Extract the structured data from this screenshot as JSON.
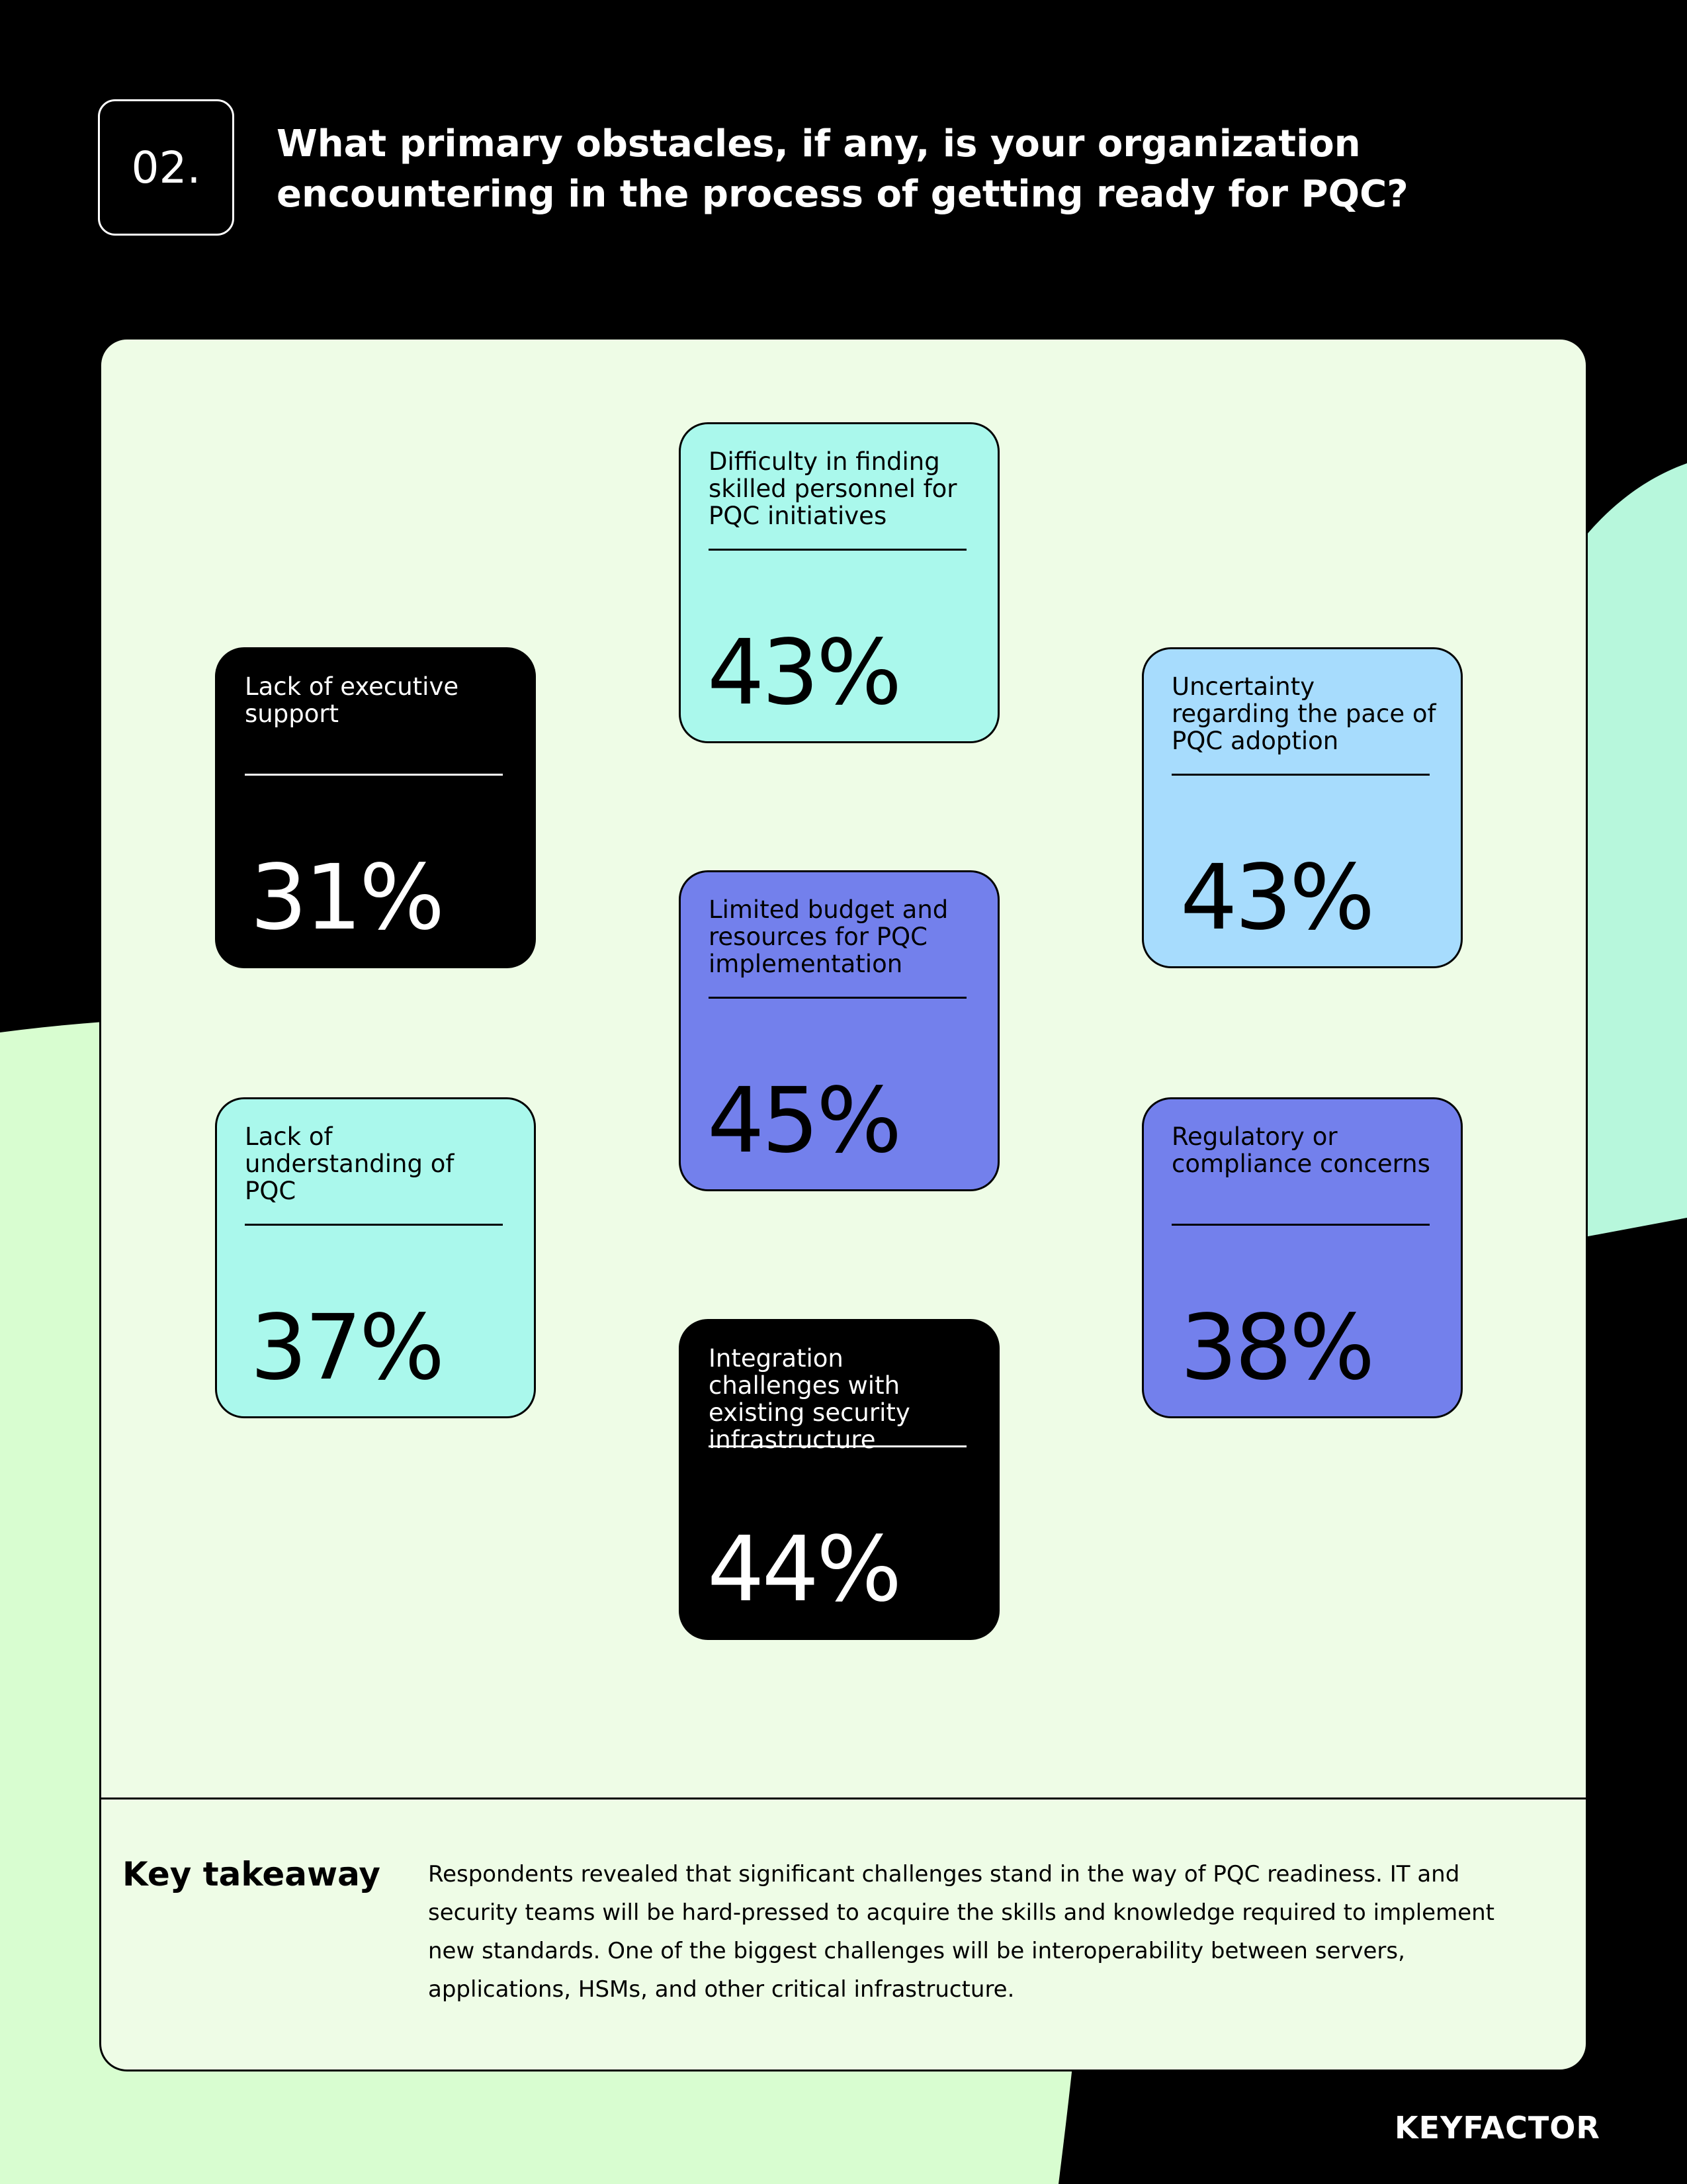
{
  "question": {
    "number": "02.",
    "title": "What primary obstacles, if any, is your organization encountering in the process of getting ready for PQC?"
  },
  "colors": {
    "background": "#000000",
    "panel": "#eefce6",
    "card_black": "#000000",
    "card_mint": "#aaf8ec",
    "card_sky": "#a7dcfd",
    "card_indigo": "#7380ec",
    "blob_mint": "#b7f7dc",
    "blob_green": "#d8fdd0"
  },
  "cards": [
    {
      "label": "Difficulty in finding skilled personnel for PQC initiatives",
      "value": "43%",
      "style": "mint"
    },
    {
      "label": "Lack of executive support",
      "value": "31%",
      "style": "black"
    },
    {
      "label": "Uncertainty regarding the pace of PQC adoption",
      "value": "43%",
      "style": "sky"
    },
    {
      "label": "Limited budget and resources for PQC implementation",
      "value": "45%",
      "style": "indigo"
    },
    {
      "label": "Lack of understanding of PQC",
      "value": "37%",
      "style": "mint"
    },
    {
      "label": "Regulatory or compliance concerns",
      "value": "38%",
      "style": "indigo"
    },
    {
      "label": "Integration challenges with existing security infrastructure",
      "value": "44%",
      "style": "black"
    }
  ],
  "takeaway": {
    "title": "Key takeaway",
    "text": "Respondents revealed that significant challenges stand in the way of PQC readiness. IT and security teams will be hard-pressed to acquire the skills and knowledge required to implement new standards. One of the biggest challenges will be interoperability between servers, applications, HSMs, and other critical infrastructure."
  },
  "logo": {
    "text": "KEYFACTOR"
  }
}
